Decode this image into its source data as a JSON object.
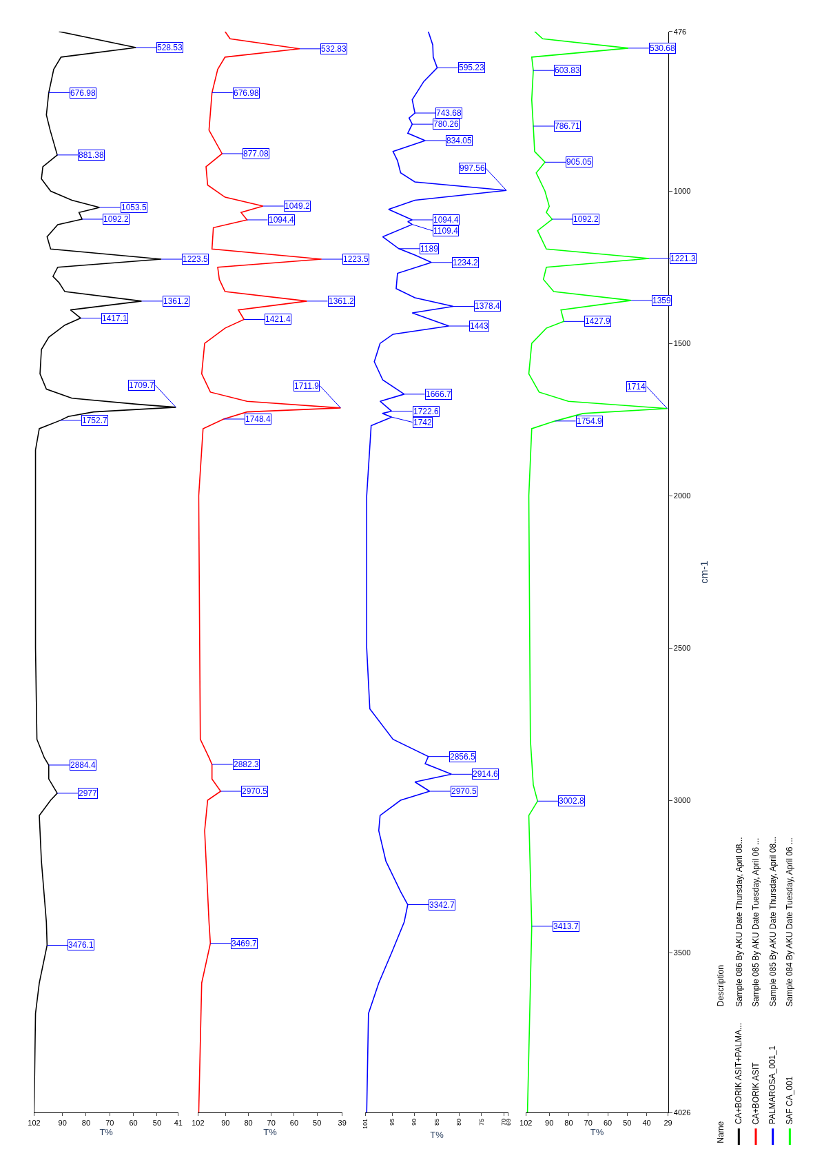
{
  "chart_data": [
    {
      "type": "line",
      "orientation": "horizontal",
      "xlabel": "T%",
      "ylim": [
        4026,
        476
      ],
      "yticks": [
        476,
        1000,
        1500,
        2000,
        2500,
        3000,
        3500,
        4026
      ],
      "xlim": [
        102,
        41
      ],
      "xticks": [
        102,
        90,
        80,
        70,
        60,
        50,
        41
      ],
      "tick_labels": "x",
      "legend": "bottom right",
      "legend_title": "Name",
      "series": [
        {
          "name": "CA+BORIK ASIT+PALMA...",
          "color": "#000000",
          "x": [
            476,
            528.53,
            560,
            600,
            676.98,
            750,
            800,
            881.38,
            920,
            960,
            1000,
            1030,
            1053.5,
            1070,
            1092.2,
            1110,
            1150,
            1190,
            1223.5,
            1250,
            1280,
            1300,
            1330,
            1361.2,
            1390,
            1417.1,
            1440,
            1480,
            1520,
            1600,
            1650,
            1680,
            1700,
            1709.7,
            1725,
            1740,
            1752.7,
            1780,
            1850,
            2000,
            2500,
            2800,
            2860,
            2884.4,
            2930,
            2977,
            3000,
            3050,
            3200,
            3400,
            3476.1,
            3600,
            3700,
            4026
          ],
          "values": [
            91.5,
            58.9,
            90.6,
            93.7,
            95.8,
            96.8,
            95.2,
            92.2,
            98.3,
            98.9,
            95,
            86,
            74.3,
            83,
            81.7,
            92,
            96.5,
            95,
            48.2,
            92,
            94,
            91.5,
            89,
            56.5,
            86.6,
            82.3,
            89,
            95.8,
            98.9,
            99.5,
            96.8,
            86,
            58,
            42,
            76.8,
            87.5,
            90.9,
            99.8,
            101.4,
            101.4,
            101.4,
            100.8,
            97.7,
            95.8,
            95.8,
            92.2,
            95,
            99.8,
            98.9,
            96.8,
            96.5,
            99.8,
            101.4,
            102
          ]
        }
      ],
      "annotations": [
        {
          "text": "528.53",
          "y": 528.53,
          "x": 58.9
        },
        {
          "text": "676.98",
          "y": 676.98,
          "x": 95.8
        },
        {
          "text": "881.38",
          "y": 881.38,
          "x": 92.2
        },
        {
          "text": "1053.5",
          "y": 1053.5,
          "x": 74.3
        },
        {
          "text": "1092.2",
          "y": 1092.2,
          "x": 81.7
        },
        {
          "text": "1223.5",
          "y": 1223.5,
          "x": 48.2
        },
        {
          "text": "1361.2",
          "y": 1361.2,
          "x": 56.5
        },
        {
          "text": "1417.1",
          "y": 1417.1,
          "x": 82.3
        },
        {
          "text": "1709.7",
          "y": 1709.7,
          "x": 42
        },
        {
          "text": "1752.7",
          "y": 1752.7,
          "x": 90.9
        },
        {
          "text": "2884.4",
          "y": 2884.4,
          "x": 95.8
        },
        {
          "text": "2977",
          "y": 2977,
          "x": 92.2
        },
        {
          "text": "3476.1",
          "y": 3476.1,
          "x": 96.5
        },
        "Description",
        "Sample 086 By AKU Date Thursday, April 08..."
      ]
    },
    {
      "type": "line",
      "orientation": "horizontal",
      "xlabel": "T%",
      "ylim": [
        4026,
        476
      ],
      "yticks": [
        476,
        1000,
        1500,
        2000,
        2500,
        3000,
        3500,
        4026
      ],
      "xlim": [
        102,
        39
      ],
      "xticks": [
        102,
        90,
        80,
        70,
        60,
        50,
        39
      ],
      "tick_labels": "x",
      "legend": "bottom right",
      "series": [
        {
          "name": "CA+BORIK ASIT",
          "color": "#ff0000",
          "x": [
            476,
            500,
            532.83,
            560,
            600,
            676.98,
            800,
            877.08,
            920,
            980,
            1020,
            1049.2,
            1070,
            1094.4,
            1120,
            1190,
            1223.5,
            1250,
            1290,
            1330,
            1361.2,
            1390,
            1421.4,
            1450,
            1500,
            1600,
            1660,
            1690,
            1711.9,
            1725,
            1748.4,
            1780,
            2000,
            2800,
            2860,
            2882.3,
            2930,
            2970.5,
            3000,
            3100,
            3400,
            3469.7,
            3600,
            4026
          ],
          "values": [
            90.2,
            88,
            57.6,
            90.2,
            93.4,
            95.9,
            97.2,
            91.5,
            98.5,
            97.8,
            90.2,
            73.6,
            83.2,
            80.6,
            95.3,
            95.9,
            48,
            93.4,
            92.7,
            90.2,
            54.4,
            84.4,
            81.9,
            90.2,
            99.1,
            100.4,
            96.6,
            80.6,
            39.7,
            80.6,
            90.8,
            99.8,
            101.7,
            101,
            97.2,
            95.9,
            95.9,
            92.1,
            97.8,
            99.1,
            97.2,
            96.6,
            100.4,
            101.7
          ]
        }
      ],
      "annotations": [
        {
          "text": "532.83",
          "y": 532.83,
          "x": 57.6
        },
        {
          "text": "676.98",
          "y": 676.98,
          "x": 95.9
        },
        {
          "text": "877.08",
          "y": 877.08,
          "x": 91.5
        },
        {
          "text": "1049.2",
          "y": 1049.2,
          "x": 73.6
        },
        {
          "text": "1094.4",
          "y": 1094.4,
          "x": 80.6
        },
        {
          "text": "1223.5",
          "y": 1223.5,
          "x": 48
        },
        {
          "text": "1361.2",
          "y": 1361.2,
          "x": 54.4
        },
        {
          "text": "1421.4",
          "y": 1421.4,
          "x": 81.9
        },
        {
          "text": "1711.9",
          "y": 1711.9,
          "x": 39.7
        },
        {
          "text": "1748.4",
          "y": 1748.4,
          "x": 90.8
        },
        {
          "text": "2882.3",
          "y": 2882.3,
          "x": 95.9
        },
        {
          "text": "2970.5",
          "y": 2970.5,
          "x": 92.1
        },
        {
          "text": "3469.7",
          "y": 3469.7,
          "x": 96.6
        },
        "Sample 085 By AKU Date Tuesday, April 06 ..."
      ]
    },
    {
      "type": "line",
      "orientation": "horizontal",
      "xlabel": "T%",
      "ylim": [
        4026,
        476
      ],
      "yticks": [
        476,
        1000,
        1500,
        2000,
        2500,
        3000,
        3500,
        4026
      ],
      "xlim": [
        101,
        69
      ],
      "xticks": [
        101,
        95,
        90,
        85,
        80,
        75,
        70,
        69
      ],
      "tick_labels": "x",
      "legend": "bottom right",
      "series": [
        {
          "name": "PALMAROSA_001_1",
          "color": "#0000ff",
          "x": [
            476,
            520,
            560,
            595.23,
            640,
            700,
            743.68,
            760,
            780.26,
            810,
            834.05,
            870,
            900,
            940,
            970,
            997.56,
            1030,
            1060,
            1094.4,
            1100,
            1109.4,
            1150,
            1189,
            1210,
            1234.2,
            1270,
            1320,
            1350,
            1378.4,
            1400,
            1443,
            1470,
            1500,
            1560,
            1620,
            1666.7,
            1690,
            1722.6,
            1730,
            1742,
            1770,
            2000,
            2500,
            2700,
            2800,
            2856.5,
            2880,
            2914.6,
            2940,
            2970.5,
            3000,
            3050,
            3100,
            3200,
            3300,
            3342.7,
            3400,
            3500,
            3600,
            3700,
            4026
          ],
          "values": [
            86.9,
            85.9,
            85.8,
            84.9,
            87.9,
            90.5,
            89.9,
            91.2,
            90.5,
            91.5,
            87.6,
            94.8,
            93.8,
            93.1,
            89.9,
            69.4,
            89.9,
            95.8,
            90.5,
            91.5,
            90.5,
            97.1,
            93.5,
            89.9,
            86.2,
            93.8,
            94.1,
            89.9,
            81.3,
            90.5,
            82.3,
            94.8,
            97.7,
            99,
            97.1,
            92.3,
            97.7,
            95.1,
            97.2,
            95.1,
            99.7,
            100.7,
            100.7,
            100,
            94.8,
            86.9,
            87.6,
            81.7,
            89.9,
            86.6,
            93.1,
            97.7,
            98,
            96.4,
            93.1,
            91.5,
            92.3,
            95.1,
            98,
            100.3,
            100.7
          ]
        }
      ],
      "annotations": [
        {
          "text": "595.23",
          "y": 595.23,
          "x": 84.9
        },
        {
          "text": "743.68",
          "y": 743.68,
          "x": 89.9
        },
        {
          "text": "780.26",
          "y": 780.26,
          "x": 90.5
        },
        {
          "text": "834.05",
          "y": 834.05,
          "x": 87.6
        },
        {
          "text": "997.56",
          "y": 997.56,
          "x": 69.4
        },
        {
          "text": "1094.4",
          "y": 1094.4,
          "x": 90.5
        },
        {
          "text": "1109.4",
          "y": 1109.4,
          "x": 90.5
        },
        {
          "text": "1189",
          "y": 1189,
          "x": 93.5
        },
        {
          "text": "1234.2",
          "y": 1234.2,
          "x": 86.2
        },
        {
          "text": "1378.4",
          "y": 1378.4,
          "x": 81.3
        },
        {
          "text": "1443",
          "y": 1443,
          "x": 82.3
        },
        {
          "text": "1666.7",
          "y": 1666.7,
          "x": 92.3
        },
        {
          "text": "1722.6",
          "y": 1722.6,
          "x": 95.1
        },
        {
          "text": "1742",
          "y": 1742,
          "x": 95.1
        },
        {
          "text": "2856.5",
          "y": 2856.5,
          "x": 86.9
        },
        {
          "text": "2914.6",
          "y": 2914.6,
          "x": 81.7
        },
        {
          "text": "2970.5",
          "y": 2970.5,
          "x": 86.6
        },
        {
          "text": "3342.7",
          "y": 3342.7,
          "x": 91.5
        },
        "Sample 085 By AKU Date Thursday, April 08..."
      ]
    },
    {
      "type": "line",
      "orientation": "horizontal",
      "xlabel": "T%",
      "ylabel": "cm-1",
      "ylim": [
        4026,
        476
      ],
      "yticks": [
        476,
        1000,
        1500,
        2000,
        2500,
        3000,
        3500,
        4026
      ],
      "xlim": [
        102,
        29
      ],
      "xticks": [
        102,
        90,
        80,
        70,
        60,
        50,
        40,
        29
      ],
      "legend": "bottom right",
      "series": [
        {
          "name": "SAF CA_001",
          "color": "#00ff00",
          "x": [
            476,
            500,
            530.68,
            560,
            603.83,
            700,
            786.71,
            870,
            905.05,
            940,
            1000,
            1050,
            1070,
            1092.2,
            1130,
            1190,
            1221.3,
            1250,
            1290,
            1330,
            1359,
            1390,
            1427.9,
            1450,
            1500,
            1600,
            1660,
            1690,
            1714,
            1730,
            1754.9,
            1780,
            2000,
            2800,
            2950,
            3002.8,
            3050,
            3413.7,
            4026
          ],
          "values": [
            97.5,
            93.4,
            49.4,
            99,
            98.2,
            99,
            98.2,
            97.5,
            92.2,
            96.7,
            92.2,
            90,
            91.5,
            88.5,
            96,
            91.5,
            38.8,
            91.5,
            93,
            87.7,
            47.9,
            84,
            82.5,
            91.5,
            99,
            100.5,
            95.2,
            80.2,
            29.4,
            72.7,
            87,
            99,
            100.5,
            99.7,
            98.2,
            96,
            100.5,
            99,
            101.2
          ]
        }
      ],
      "annotations": [
        {
          "text": "530.68",
          "y": 530.68,
          "x": 49.4
        },
        {
          "text": "603.83",
          "y": 603.83,
          "x": 98.2
        },
        {
          "text": "786.71",
          "y": 786.71,
          "x": 98.2
        },
        {
          "text": "905.05",
          "y": 905.05,
          "x": 92.2
        },
        {
          "text": "1092.2",
          "y": 1092.2,
          "x": 88.5
        },
        {
          "text": "1221.3",
          "y": 1221.3,
          "x": 38.8
        },
        {
          "text": "1359",
          "y": 1359,
          "x": 47.9
        },
        {
          "text": "1427.9",
          "y": 1427.9,
          "x": 82.5
        },
        {
          "text": "1714",
          "y": 1714,
          "x": 29.4
        },
        {
          "text": "1754.9",
          "y": 1754.9,
          "x": 87
        },
        {
          "text": "3002.8",
          "y": 3002.8,
          "x": 96
        },
        {
          "text": "3413.7",
          "y": 3413.7,
          "x": 99
        },
        "Sample 084 By AKU Date Tuesday, April 06 ..."
      ]
    }
  ]
}
